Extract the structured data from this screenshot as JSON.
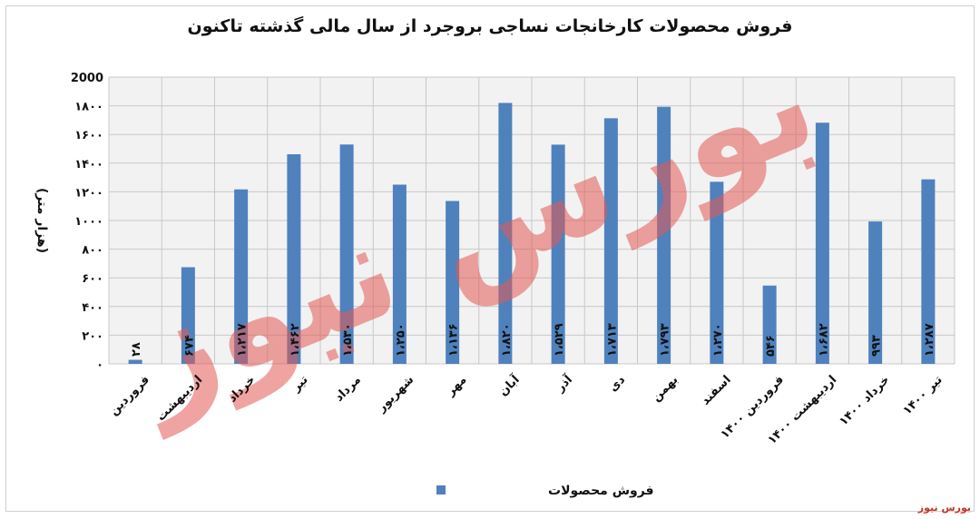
{
  "title": "فروش محصولات کارخانجات نساجی بروجرد از سال مالی گذشته تاکنون",
  "source_label": "بورس نیوز",
  "watermark": "بورس نیوز",
  "colors": {
    "bar": "#4f81bd",
    "grid": "#c8c8c8",
    "plot_bg": "#f2f2f2",
    "watermark": "#e35a55"
  },
  "chart_data": {
    "type": "bar",
    "ylabel": "(هزار متر)",
    "ylim": [
      0,
      2000
    ],
    "y_ticks": [
      0,
      200,
      400,
      600,
      800,
      1000,
      1200,
      1400,
      1600,
      1800,
      2000
    ],
    "y_tick_labels": [
      "۰",
      "۲۰۰",
      "۴۰۰",
      "۶۰۰",
      "۸۰۰",
      "۱۰۰۰",
      "۱۲۰۰",
      "۱۴۰۰",
      "۱۶۰۰",
      "۱۸۰۰",
      "2000"
    ],
    "categories": [
      "فروردین",
      "اردیبهشت",
      "خرداد",
      "تیر",
      "مرداد",
      "شهریور",
      "مهر",
      "آبان",
      "آذر",
      "دی",
      "بهمن",
      "اسفند",
      "فروردین ۱۴۰۰",
      "اردیبهشت ۱۴۰۰",
      "خرداد ۱۴۰۰",
      "تیر ۱۴۰۰"
    ],
    "series": [
      {
        "name": "فروش محصولات",
        "values": [
          28,
          674,
          1217,
          1462,
          1530,
          1250,
          1136,
          1820,
          1529,
          1713,
          1793,
          1270,
          546,
          1682,
          993,
          1287
        ],
        "data_labels": [
          "۲۸",
          "۶۷۴",
          "۱،۲۱۷",
          "۱،۴۶۲",
          "۱،۵۳۰",
          "۱،۲۵۰",
          "۱،۱۳۶",
          "۱،۸۲۰",
          "۱،۵۲۹",
          "۱،۷۱۳",
          "۱،۷۹۳",
          "۱،۲۷۰",
          "۵۴۶",
          "۱،۶۸۲",
          "۹۹۳",
          "۱،۲۸۷"
        ]
      }
    ],
    "legend": "bottom",
    "grid": true
  }
}
